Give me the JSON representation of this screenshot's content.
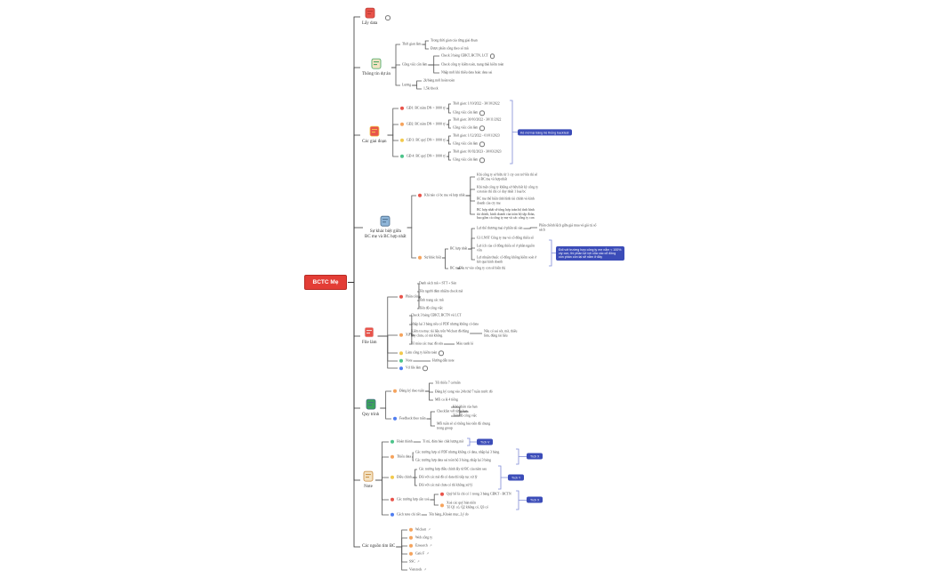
{
  "colors": {
    "red": "#e8534a",
    "orange": "#f5a35c",
    "yellow": "#f2c94c",
    "green": "#4cc38a",
    "blue": "#4f7df0",
    "accent": "#3b4cb8",
    "root": "#e33d36"
  },
  "tree": {
    "text": "BCTC Mẹ",
    "children": [
      {
        "text": "Lấy data",
        "icon": "database-icon",
        "link": true
      },
      {
        "text": "Thông tin dự án",
        "icon": "checklist-icon",
        "children": [
          {
            "text": "Thời gian làm",
            "children": [
              {
                "text": "Trong thời gian của từng giai đoạn"
              },
              {
                "text": "Được phân công theo số mã"
              }
            ]
          },
          {
            "text": "Công việc cần làm",
            "children": [
              {
                "text": "Check 3 bảng CĐKT, BCTN, LCT",
                "link": true
              },
              {
                "text": "Check công ty kiểm toán, trạng thái kiểm toán"
              },
              {
                "text": "Nhập mới khi thiếu data hoặc data sai"
              }
            ]
          },
          {
            "text": "Lương",
            "children": [
              {
                "text": "2k/bảng mới hoàn toàn"
              },
              {
                "text": "1,5k/check"
              }
            ]
          }
        ]
      },
      {
        "text": "Các giai đoạn",
        "icon": "layout-icon",
        "children": [
          {
            "text": "GĐ1: BC năm DN > 1000 tỷ",
            "dot": "red",
            "children": [
              {
                "text": "Thời gian: 1/10/2022 - 30/10/2022"
              },
              {
                "text": "Công việc cần làm",
                "link": true
              }
            ]
          },
          {
            "text": "GĐ2: BC năm DN < 1000 tỷ",
            "dot": "orange",
            "children": [
              {
                "text": "Thời gian: 30/10/2022 - 30/11/2022"
              },
              {
                "text": "Công việc cần làm",
                "link": true
              }
            ]
          },
          {
            "text": "GĐ 3: BC quý DN > 1000 tỷ",
            "dot": "yellow",
            "children": [
              {
                "text": "Thời gian: 1/12/2022 - 01/01/2023"
              },
              {
                "text": "Công việc cần làm",
                "link": true
              }
            ]
          },
          {
            "text": "GĐ 4: BC quý DN < 1000 tỷ",
            "dot": "green",
            "children": [
              {
                "text": "Thời gian: 01/02/2023 - 30/03/2023"
              },
              {
                "text": "Công việc cần làm",
                "link": true
              }
            ]
          }
        ]
      },
      {
        "text": "Sự khác biệt giữa\nBC mẹ và BC hợp nhất",
        "icon": "compare-icon",
        "children": [
          {
            "text": "Khi nào có bc mẹ và hợp nhất",
            "dot": "red",
            "children": [
              {
                "text": "Khi công ty sở hữu từ 1 cty con trở lên thì sẽ\ncó BC mẹ và hợp nhất"
              },
              {
                "text": "Khi một công ty không sở hữu bất kỳ công ty\ncon nào thì chỉ có duy nhất 1 loại bc"
              },
              {
                "text": "BC mẹ thể hiện tình hình tài chính và kinh\ndoanh của cty mẹ"
              },
              {
                "text": "BC hợp nhất sẽ tổng hợp toàn bộ tình hình\ntài chính, kinh doanh của toàn bộ tập đoàn,\nbao gồm cả công ty mẹ và các công ty con"
              }
            ]
          },
          {
            "text": "Sự khác biệt",
            "dot": "orange",
            "children": [
              {
                "text": "BC hợp nhất",
                "children": [
                  {
                    "text": "Lợi thế thương mại ở phần tài sản",
                    "children": [
                      {
                        "text": "Phần chênh lệch giữa giá mua và giá trị sổ\nsách"
                      }
                    ]
                  },
                  {
                    "text": "Có LNST Công ty mẹ và cổ đông thiểu số"
                  },
                  {
                    "text": "Lợi ích của cổ đông thiểu số ở phần nguồn\nvốn"
                  },
                  {
                    "text": "Lợi nhuận thuộc cổ đông không kiểm soát ở\nkết quả kinh doanh"
                  }
                ]
              },
              {
                "text": "BC mẹ",
                "children": [
                  {
                    "text": "Đầu tư vào công ty con sẽ hiển thị"
                  }
                ]
              }
            ]
          }
        ]
      },
      {
        "text": "File làm",
        "icon": "file-icon",
        "children": [
          {
            "text": "Phân công",
            "dot": "red",
            "children": [
              {
                "text": "Danh sách mã + STT + Sàn"
              },
              {
                "text": "Tên người đảm nhiệm check mã"
              },
              {
                "text": "Tình trạng các mã"
              },
              {
                "text": "Tiến độ công việc"
              }
            ]
          },
          {
            "text": "Xử lý",
            "dot": "orange",
            "children": [
              {
                "text": "Check 3 bảng CĐKT, BCTN và LCT"
              },
              {
                "text": "Nhập lại 3 bảng nếu có PDF nhưng không có data"
              },
              {
                "text": "Kiểm tra mục tài liệu trên Wichart đã đúng\nhay chưa, có mã không",
                "children": [
                  {
                    "text": "Nếu có sai sót, mã, thiếu\nlàm, đúng tài liệu"
                  }
                ]
              },
              {
                "text": "Tô màu các mục đã sửa",
                "children": [
                  {
                    "text": "Màu xanh lá"
                  }
                ]
              }
            ]
          },
          {
            "text": "Làm công ty kiểm toán",
            "dot": "yellow",
            "link": true
          },
          {
            "text": "Note",
            "dot": "green",
            "children": [
              {
                "text": "Hướng dẫn note"
              }
            ]
          },
          {
            "text": "Vd file làm",
            "dot": "blue",
            "link": true
          }
        ]
      },
      {
        "text": "Quy trình",
        "icon": "flow-icon",
        "children": [
          {
            "text": "Đăng ký theo tuần",
            "dot": "orange",
            "children": [
              {
                "text": "Tối thiểu 7 ca/tuần"
              },
              {
                "text": "Đăng ký xong vào 24h thứ 7 tuần trước đó"
              },
              {
                "text": "Mỗi ca là 4 tiếng"
              }
            ]
          },
          {
            "text": "Feedback theo tuần",
            "dot": "blue",
            "children": [
              {
                "text": "Checklist với từng bạn",
                "children": [
                  {
                    "text": "Khó khăn của bạn"
                  },
                  {
                    "text": "Tiến độ công việc"
                  }
                ]
              },
              {
                "text": "Mỗi tuần sẽ có thông báo tiến độ chung\ntrong group"
              }
            ]
          }
        ]
      },
      {
        "text": "Note",
        "icon": "magnifier-icon",
        "children": [
          {
            "text": "Hoàn thành",
            "dot": "green",
            "children": [
              {
                "text": "Tỉ mỉ, đảm bảo chất lượng mã"
              }
            ]
          },
          {
            "text": "Thiếu data",
            "dot": "orange",
            "children": [
              {
                "text": "Các trường hợp có PDF nhưng không có data, nhập lại 3 bảng"
              },
              {
                "text": "Các trường hợp data sai toàn bộ 3 bảng, nhập lại 3 bảng"
              }
            ]
          },
          {
            "text": "Điều chỉnh",
            "dot": "yellow",
            "children": [
              {
                "text": "Các trường hợp điều chỉnh lấy từ BC của năm sau"
              },
              {
                "text": "Đối với các mã đã có data thì tiếp tục xử lý"
              },
              {
                "text": "Đối với các mã chưa có thì không xử lý"
              }
            ]
          },
          {
            "text": "Các trường hợp cần xoá",
            "dot": "red",
            "children": [
              {
                "text": "Quý bổ là chỉ có 1 trong 3 bảng CĐKT - BCTN",
                "dot": "red"
              },
              {
                "text": "Xoá các quý bán niên\nTổ Q1 có, Q2 không có, Q3 có",
                "dot": "orange"
              }
            ]
          },
          {
            "text": "Cách note chi tiết",
            "dot": "blue",
            "children": [
              {
                "text": "Tên bảng_Khoản mục_Lý do"
              }
            ]
          }
        ]
      },
      {
        "text": "Các nguồn tìm BC",
        "children": [
          {
            "text": "Wichart",
            "dot": "orange",
            "ext": true
          },
          {
            "text": "Web công ty",
            "dot": "orange"
          },
          {
            "text": "Ezsearch",
            "dot": "orange",
            "ext": true
          },
          {
            "text": "Cafe F",
            "dot": "orange",
            "ext": true
          },
          {
            "text": "SSC",
            "ext": true
          },
          {
            "text": "Vietstock",
            "ext": true
          }
        ]
      }
    ]
  },
  "annotations": [
    {
      "text": "Kê mới lại bảng hệ thống backtest",
      "kind": "box"
    },
    {
      "text": "Đối với trường hợp công ty mẹ nắm < 100%\ncty con, thì phần lợi ích của các cổ đông\ncòn phần còn lại sẽ nằm ở đây",
      "kind": "box"
    },
    {
      "text": "Tích V",
      "kind": "badge"
    },
    {
      "text": "Tích X",
      "kind": "badge"
    },
    {
      "text": "Tích Y",
      "kind": "badge"
    },
    {
      "text": "Tích X",
      "kind": "badge"
    }
  ]
}
